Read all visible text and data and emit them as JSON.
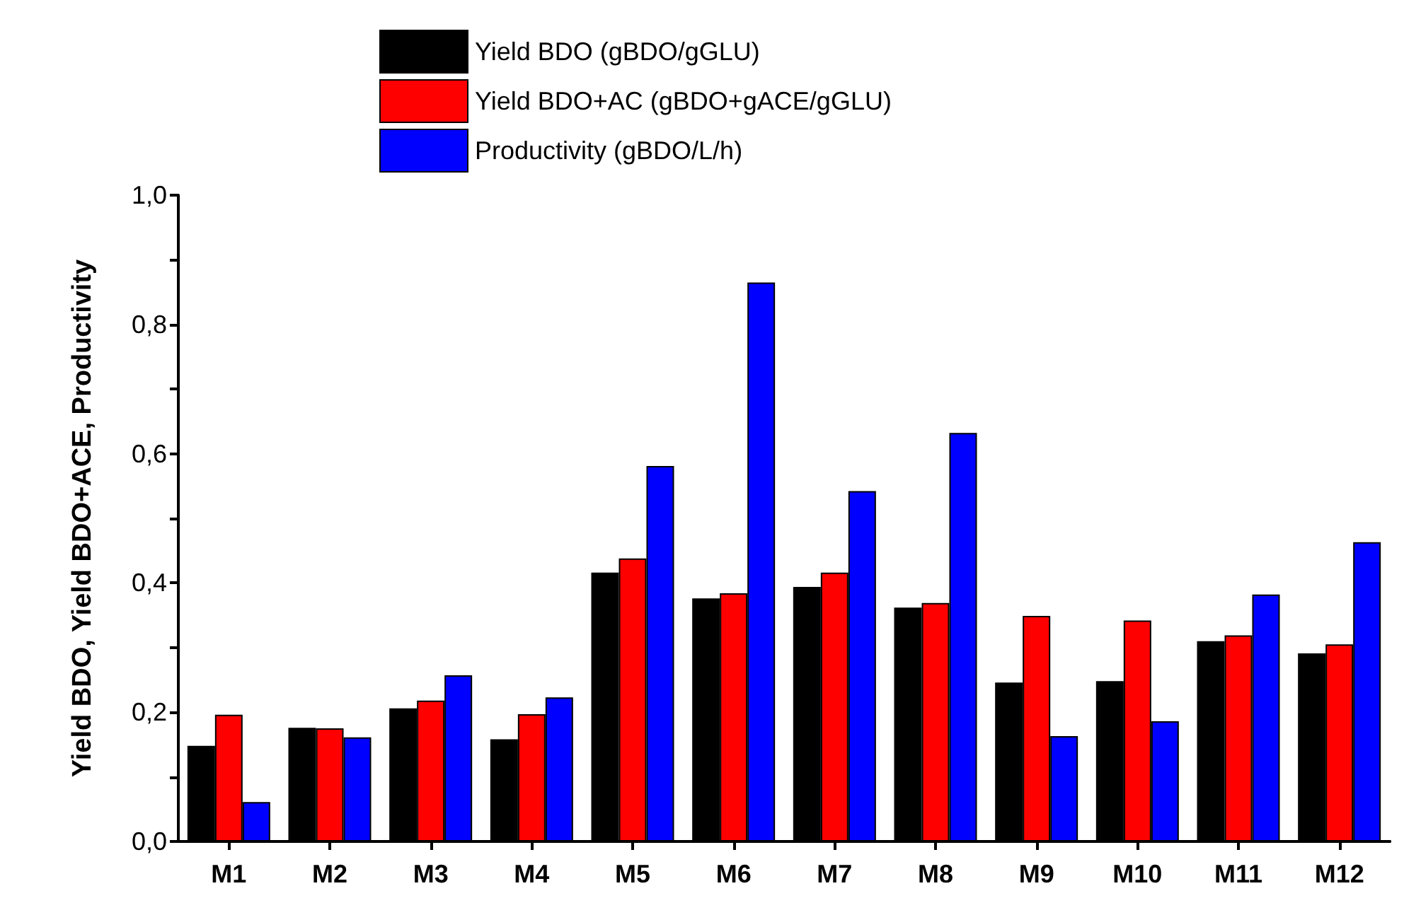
{
  "chart_data": {
    "type": "bar",
    "ylabel": "Yield BDO, Yield BDO+ACE, Productivity",
    "categories": [
      "M1",
      "M2",
      "M3",
      "M4",
      "M5",
      "M6",
      "M7",
      "M8",
      "M9",
      "M10",
      "M11",
      "M12"
    ],
    "series": [
      {
        "name": "Yield BDO (gBDO/gGLU)",
        "color": "#000000",
        "values": [
          0.148,
          0.176,
          0.206,
          0.158,
          0.416,
          0.376,
          0.394,
          0.362,
          0.246,
          0.248,
          0.31,
          0.291
        ]
      },
      {
        "name": "Yield BDO+AC (gBDO+gACE/gGLU)",
        "color": "#ff0000",
        "values": [
          0.196,
          0.175,
          0.218,
          0.197,
          0.438,
          0.384,
          0.416,
          0.369,
          0.349,
          0.342,
          0.319,
          0.305
        ]
      },
      {
        "name": "Productivity (gBDO/L/h)",
        "color": "#0000ff",
        "values": [
          0.061,
          0.161,
          0.257,
          0.223,
          0.581,
          0.865,
          0.542,
          0.632,
          0.163,
          0.186,
          0.382,
          0.463
        ]
      }
    ],
    "ylim": [
      0,
      1
    ],
    "yticks": [
      {
        "value": 0,
        "label": "0,0"
      },
      {
        "value": 0.1,
        "label": null
      },
      {
        "value": 0.2,
        "label": "0,2"
      },
      {
        "value": 0.3,
        "label": null
      },
      {
        "value": 0.4,
        "label": "0,4"
      },
      {
        "value": 0.5,
        "label": null
      },
      {
        "value": 0.6,
        "label": "0,6"
      },
      {
        "value": 0.7,
        "label": null
      },
      {
        "value": 0.8,
        "label": "0,8"
      },
      {
        "value": 0.9,
        "label": null
      },
      {
        "value": 1,
        "label": "1,0"
      }
    ],
    "grid": false,
    "legend": "top"
  }
}
